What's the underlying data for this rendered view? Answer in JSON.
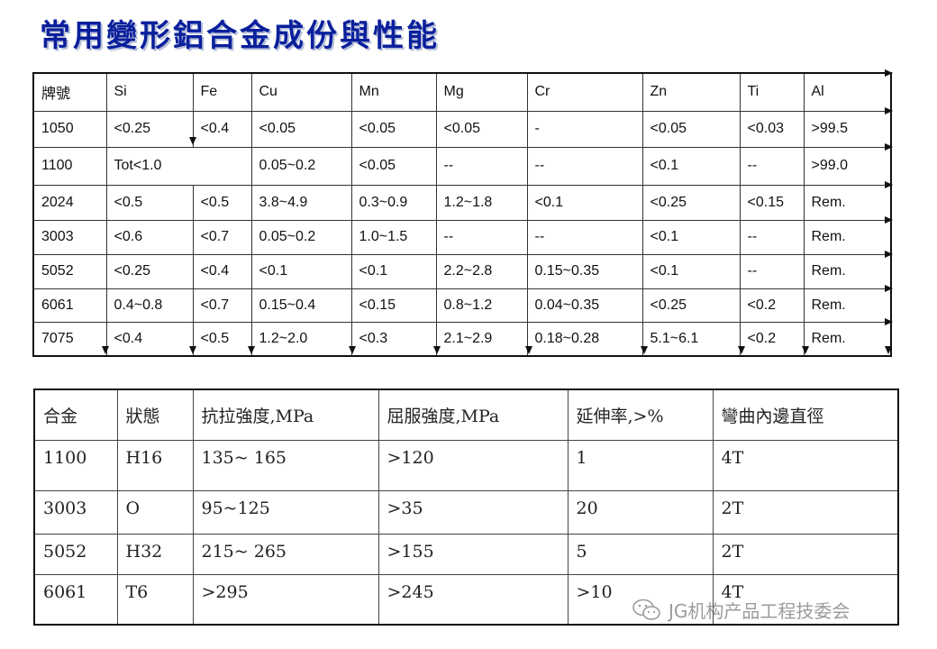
{
  "title": "常用變形鋁合金成份與性能",
  "composition": {
    "headers": [
      "牌號",
      "Si",
      "Fe",
      "Cu",
      "Mn",
      "Mg",
      "Cr",
      "Zn",
      "Ti",
      "Al"
    ],
    "rows": [
      [
        "1050",
        "<0.25",
        "<0.4",
        "<0.05",
        "<0.05",
        "<0.05",
        "-",
        "<0.05",
        "<0.03",
        ">99.5"
      ],
      [
        "1100",
        "Tot<1.0",
        "",
        "0.05~0.2",
        "<0.05",
        "--",
        "--",
        "<0.1",
        "--",
        ">99.0"
      ],
      [
        "2024",
        "<0.5",
        "<0.5",
        "3.8~4.9",
        "0.3~0.9",
        "1.2~1.8",
        "<0.1",
        "<0.25",
        "<0.15",
        "Rem."
      ],
      [
        "3003",
        "<0.6",
        "<0.7",
        "0.05~0.2",
        "1.0~1.5",
        "--",
        "--",
        "<0.1",
        "--",
        "Rem."
      ],
      [
        "5052",
        "<0.25",
        "<0.4",
        "<0.1",
        "<0.1",
        "2.2~2.8",
        "0.15~0.35",
        "<0.1",
        "--",
        "Rem."
      ],
      [
        "6061",
        "0.4~0.8",
        "<0.7",
        "0.15~0.4",
        "<0.15",
        "0.8~1.2",
        "0.04~0.35",
        "<0.25",
        "<0.2",
        "Rem."
      ],
      [
        "7075",
        "<0.4",
        "<0.5",
        "1.2~2.0",
        "<0.3",
        "2.1~2.9",
        "0.18~0.28",
        "5.1~6.1",
        "<0.2",
        "Rem."
      ]
    ]
  },
  "properties": {
    "headers": [
      "合金",
      "狀態",
      "抗拉強度,MPa",
      "屈服強度,MPa",
      "延伸率,>%",
      "彎曲內邊直徑"
    ],
    "rows": [
      [
        "1100",
        "H16",
        "135~ 165",
        ">120",
        "1",
        "4T"
      ],
      [
        "3003",
        "O",
        "95~125",
        ">35",
        "20",
        "2T"
      ],
      [
        "5052",
        "H32",
        "215~ 265",
        ">155",
        "5",
        "2T"
      ],
      [
        "6061",
        "T6",
        ">295",
        ">245",
        ">10",
        "4T"
      ]
    ]
  },
  "watermark": {
    "text": "JG机构产品工程技委会",
    "icon": "wechat-icon"
  },
  "colors": {
    "title": "#0a1f9c",
    "grid": "#111111",
    "watermark": "#8a8a8a"
  }
}
